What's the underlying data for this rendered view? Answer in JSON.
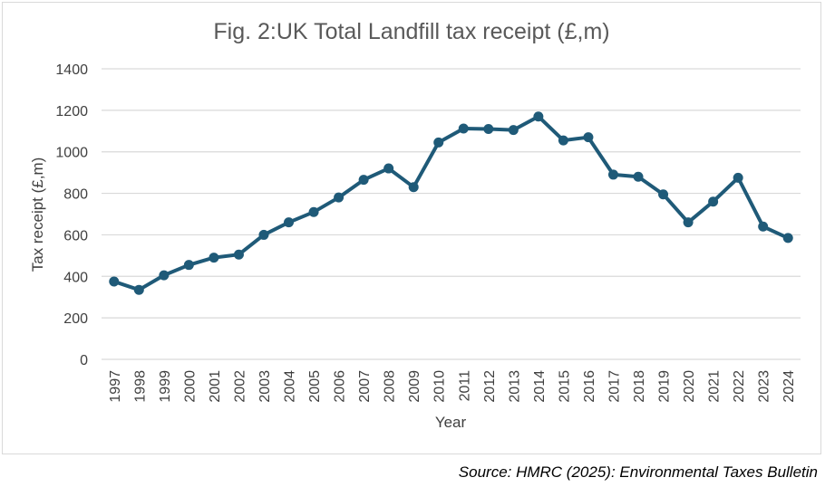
{
  "chart_data": {
    "type": "line",
    "title": "Fig. 2:UK Total Landfill tax receipt (£,m)",
    "xlabel": "Year",
    "ylabel": "Tax receipt (£,m)",
    "ylim": [
      0,
      1400
    ],
    "yticks": [
      0,
      200,
      400,
      600,
      800,
      1000,
      1200,
      1400
    ],
    "grid": true,
    "categories": [
      "1997",
      "1998",
      "1999",
      "2000",
      "2001",
      "2002",
      "2003",
      "2004",
      "2005",
      "2006",
      "2007",
      "2008",
      "2009",
      "2010",
      "2011",
      "2012",
      "2013",
      "2014",
      "2015",
      "2016",
      "2017",
      "2018",
      "2019",
      "2020",
      "2021",
      "2022",
      "2023",
      "2024"
    ],
    "series": [
      {
        "name": "Total Landfill tax receipt",
        "color": "#1f5a78",
        "values": [
          375,
          335,
          405,
          455,
          490,
          505,
          600,
          660,
          710,
          780,
          865,
          920,
          830,
          1045,
          1112,
          1110,
          1105,
          1170,
          1055,
          1070,
          890,
          880,
          795,
          660,
          760,
          875,
          640,
          585
        ]
      }
    ]
  },
  "source_note": "Source: HMRC (2025): Environmental Taxes Bulletin"
}
